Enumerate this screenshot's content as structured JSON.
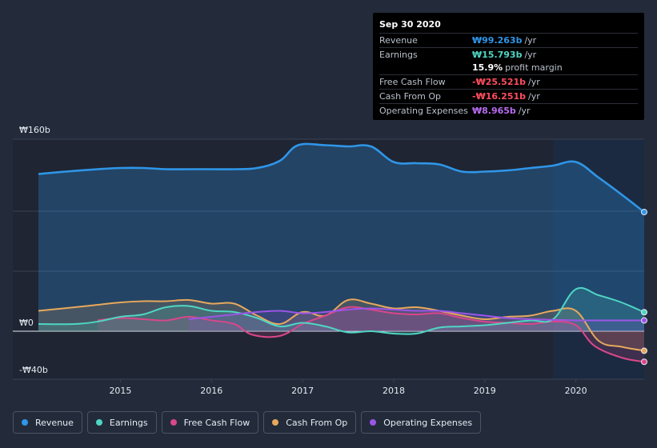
{
  "tooltip": {
    "date": "Sep 30 2020",
    "rows": [
      {
        "label": "Revenue",
        "value": "₩99.263b",
        "unit": "/yr",
        "color": "#2f96e8"
      },
      {
        "label": "Earnings",
        "value": "₩15.793b",
        "unit": "/yr",
        "color": "#4fd6c4"
      },
      {
        "label": "",
        "value": "15.9%",
        "unit": "profit margin",
        "color": "#ffffff"
      },
      {
        "label": "Free Cash Flow",
        "value": "-₩25.521b",
        "unit": "/yr",
        "color": "#ff4d5e"
      },
      {
        "label": "Cash From Op",
        "value": "-₩16.251b",
        "unit": "/yr",
        "color": "#ff4d5e"
      },
      {
        "label": "Operating Expenses",
        "value": "₩8.965b",
        "unit": "/yr",
        "color": "#b76cf2"
      }
    ]
  },
  "legend": [
    {
      "label": "Revenue",
      "color": "#2f96e8"
    },
    {
      "label": "Earnings",
      "color": "#4fd6c4"
    },
    {
      "label": "Free Cash Flow",
      "color": "#d9478a"
    },
    {
      "label": "Cash From Op",
      "color": "#e8a85c"
    },
    {
      "label": "Operating Expenses",
      "color": "#9b55e6"
    }
  ],
  "chart_data": {
    "type": "line",
    "title": "",
    "xlabel": "",
    "ylabel": "",
    "y_tick_labels": [
      "₩160b",
      "₩0",
      "-₩40b"
    ],
    "x_tick_labels": [
      "2015",
      "2016",
      "2017",
      "2018",
      "2019",
      "2020"
    ],
    "x_ticks": [
      2015,
      2016,
      2017,
      2018,
      2019,
      2020
    ],
    "xlim": [
      2014.1,
      2020.75
    ],
    "ylim": [
      -40,
      160
    ],
    "highlight_from": 2019.75,
    "series": [
      {
        "name": "Revenue",
        "color": "#2f96e8",
        "area": true,
        "x": [
          2014.1,
          2014.4,
          2014.75,
          2015.0,
          2015.25,
          2015.5,
          2015.75,
          2016.0,
          2016.25,
          2016.5,
          2016.75,
          2016.95,
          2017.25,
          2017.5,
          2017.75,
          2018.0,
          2018.25,
          2018.5,
          2018.75,
          2019.0,
          2019.25,
          2019.5,
          2019.75,
          2020.0,
          2020.25,
          2020.5,
          2020.75
        ],
        "y": [
          131,
          133,
          135,
          136,
          136,
          135,
          135,
          135,
          135,
          136,
          142,
          155,
          155,
          154,
          154,
          141,
          140,
          139,
          133,
          133,
          134,
          136,
          138,
          141,
          128,
          114,
          99.3
        ]
      },
      {
        "name": "Earnings",
        "color": "#4fd6c4",
        "x": [
          2014.1,
          2014.5,
          2014.75,
          2015.0,
          2015.25,
          2015.5,
          2015.75,
          2016.0,
          2016.25,
          2016.5,
          2016.75,
          2017.0,
          2017.25,
          2017.5,
          2017.75,
          2018.0,
          2018.25,
          2018.5,
          2018.75,
          2019.0,
          2019.25,
          2019.5,
          2019.75,
          2020.0,
          2020.25,
          2020.5,
          2020.75
        ],
        "y": [
          6,
          6,
          8,
          12,
          14,
          20,
          21,
          17,
          16,
          11,
          4,
          7,
          4,
          -1,
          0,
          -2,
          -2,
          3,
          4,
          5,
          7,
          9,
          10,
          35,
          30,
          24,
          15.8
        ]
      },
      {
        "name": "Free Cash Flow",
        "color": "#d9478a",
        "x": [
          2014.75,
          2015.0,
          2015.25,
          2015.5,
          2015.75,
          2016.0,
          2016.25,
          2016.45,
          2016.75,
          2017.0,
          2017.25,
          2017.5,
          2017.75,
          2018.0,
          2018.25,
          2018.5,
          2018.75,
          2019.0,
          2019.25,
          2019.5,
          2019.75,
          2020.0,
          2020.2,
          2020.5,
          2020.75
        ],
        "y": [
          9,
          11,
          10,
          9,
          12,
          9,
          6,
          -3,
          -4,
          6,
          13,
          20,
          18,
          15,
          14,
          15,
          11,
          8,
          7,
          6,
          8,
          5,
          -12,
          -22,
          -25.5
        ]
      },
      {
        "name": "Cash From Op",
        "color": "#e8a85c",
        "x": [
          2014.1,
          2014.5,
          2014.75,
          2015.0,
          2015.25,
          2015.5,
          2015.75,
          2016.0,
          2016.25,
          2016.5,
          2016.75,
          2017.0,
          2017.25,
          2017.5,
          2017.75,
          2018.0,
          2018.25,
          2018.5,
          2018.75,
          2019.0,
          2019.25,
          2019.5,
          2019.75,
          2020.0,
          2020.25,
          2020.5,
          2020.75
        ],
        "y": [
          17,
          20,
          22,
          24,
          25,
          25,
          26,
          23,
          23,
          13,
          6,
          16,
          13,
          26,
          23,
          19,
          20,
          17,
          13,
          10,
          12,
          13,
          17,
          17,
          -8,
          -13,
          -16.3
        ]
      },
      {
        "name": "Operating Expenses",
        "color": "#9b55e6",
        "x": [
          2015.75,
          2016.0,
          2016.25,
          2016.5,
          2016.75,
          2017.0,
          2017.25,
          2017.5,
          2017.75,
          2018.0,
          2018.25,
          2018.5,
          2018.75,
          2019.0,
          2019.25,
          2019.5,
          2019.75,
          2020.0,
          2020.25,
          2020.5,
          2020.75
        ],
        "y": [
          10,
          12,
          14,
          16,
          17,
          15,
          16,
          18,
          19,
          18,
          17,
          17,
          15,
          13,
          11,
          10,
          9.5,
          9,
          9,
          9,
          8.97
        ]
      }
    ]
  }
}
